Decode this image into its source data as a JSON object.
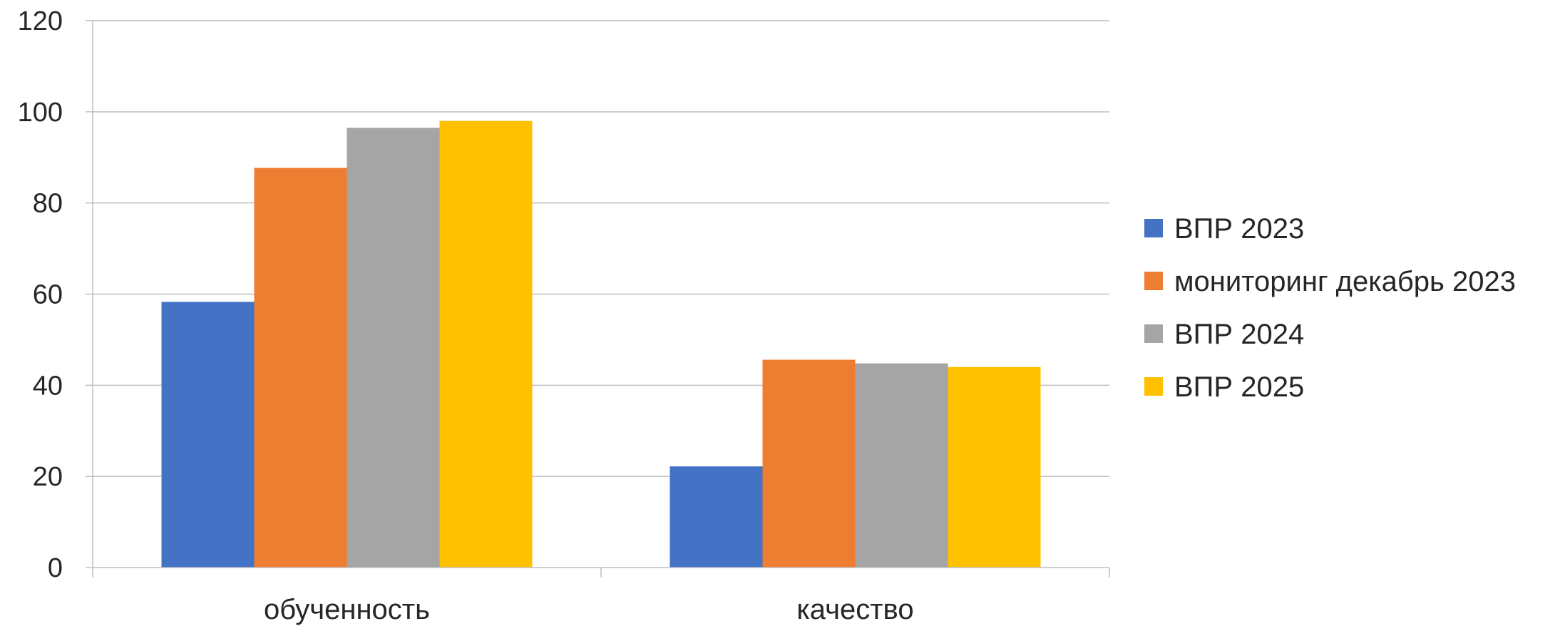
{
  "chart_data": {
    "type": "bar",
    "categories": [
      "обученность",
      "качество"
    ],
    "series": [
      {
        "name": "ВПР 2023",
        "color": "#4472C4",
        "values": [
          58.3,
          22.2
        ]
      },
      {
        "name": "мониторинг декабрь 2023",
        "color": "#ED7D31",
        "values": [
          87.7,
          45.6
        ]
      },
      {
        "name": "ВПР 2024",
        "color": "#A5A5A5",
        "values": [
          96.5,
          44.8
        ]
      },
      {
        "name": "ВПР 2025",
        "color": "#FFC000",
        "values": [
          98.0,
          44.0
        ]
      }
    ],
    "y_ticks": [
      0,
      20,
      40,
      60,
      80,
      100,
      120
    ],
    "ylim": [
      0,
      120
    ],
    "grid": true,
    "legend_position": "right"
  }
}
